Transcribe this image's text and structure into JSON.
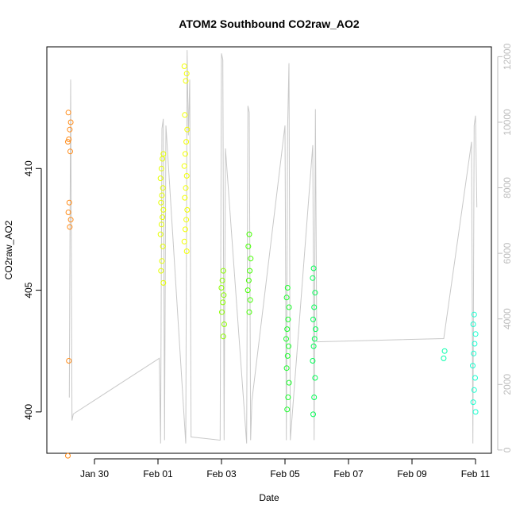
{
  "chart_data": {
    "type": "scatter",
    "title": "ATOM2 Southbound CO2raw_AO2",
    "xlabel": "Date",
    "ylabel": "CO2raw_AO2",
    "x_axis_type": "date",
    "xlim": [
      "2016-01-28T12:00",
      "2016-02-11T12:00"
    ],
    "x_ticks": [
      {
        "value": "2016-01-30T00:00",
        "label": "Jan 30"
      },
      {
        "value": "2016-02-01T00:00",
        "label": "Feb 01"
      },
      {
        "value": "2016-02-03T00:00",
        "label": "Feb 03"
      },
      {
        "value": "2016-02-05T00:00",
        "label": "Feb 05"
      },
      {
        "value": "2016-02-07T00:00",
        "label": "Feb 07"
      },
      {
        "value": "2016-02-09T00:00",
        "label": "Feb 09"
      },
      {
        "value": "2016-02-11T00:00",
        "label": "Feb 11"
      }
    ],
    "ylim": [
      398.3,
      415.0
    ],
    "y_ticks": [
      400,
      405,
      410
    ],
    "y_ticks_rotated": true,
    "y2_ticks": [
      0,
      2000,
      4000,
      6000,
      8000,
      10000,
      12000
    ],
    "y2_ticks_color": "#bdbdbd",
    "y2_lim": [
      -100,
      12300
    ],
    "line_color": "#c8c8c8",
    "grid": false,
    "legend": "none",
    "point_color_scale": "rainbow by date (orange to cyan)",
    "point_series": [
      {
        "x": "2016-01-29T05:00",
        "color": "#ff8c1a",
        "values": [
          398.2,
          402.1,
          407.6,
          407.9,
          408.2,
          408.6,
          410.7,
          411.1,
          411.2,
          411.6,
          411.9,
          412.3
        ]
      },
      {
        "x": "2016-02-01T03:00",
        "color": "#e6ff00",
        "values": [
          405.3,
          405.8,
          406.2,
          406.8,
          407.3,
          407.7,
          408.0,
          408.3,
          408.6,
          408.9,
          409.2,
          409.6,
          410.0,
          410.4,
          410.6
        ]
      },
      {
        "x": "2016-02-01T21:00",
        "color": "#f2ff00",
        "values": [
          406.6,
          407.0,
          407.5,
          407.9,
          408.3,
          408.8,
          409.2,
          409.7,
          410.1,
          410.6,
          411.1,
          411.6,
          412.2,
          413.6,
          413.9,
          414.2
        ]
      },
      {
        "x": "2016-02-03T01:00",
        "color": "#8cff00",
        "values": [
          403.1,
          403.6,
          404.1,
          404.5,
          404.8,
          405.1,
          405.4,
          405.8
        ]
      },
      {
        "x": "2016-02-03T21:00",
        "color": "#44ff00",
        "values": [
          404.1,
          404.6,
          405.0,
          405.4,
          405.8,
          406.3,
          406.8,
          407.3
        ]
      },
      {
        "x": "2016-02-05T02:00",
        "color": "#1aff2a",
        "values": [
          400.1,
          400.6,
          401.2,
          401.8,
          402.3,
          402.7,
          403.0,
          403.4,
          403.8,
          404.3,
          404.7,
          405.1
        ]
      },
      {
        "x": "2016-02-05T22:00",
        "color": "#00ff55",
        "values": [
          399.9,
          400.6,
          401.4,
          402.1,
          402.7,
          403.0,
          403.4,
          403.8,
          404.3,
          404.9,
          405.5,
          405.9
        ]
      },
      {
        "x": "2016-02-10T01:00",
        "color": "#00ffaa",
        "values": [
          402.2,
          402.5
        ]
      },
      {
        "x": "2016-02-10T23:00",
        "color": "#19ffd0",
        "values": [
          400.0,
          400.4,
          400.9,
          401.4,
          401.9,
          402.4,
          402.8,
          403.2,
          403.6,
          404.0
        ]
      }
    ],
    "line_series": {
      "name": "",
      "axis": "right",
      "x": [
        "2016-01-29T05:00",
        "2016-01-29T06:00",
        "2016-01-29T07:00",
        "2016-01-29T08:00",
        "2016-02-01T01:00",
        "2016-02-01T02:00",
        "2016-02-01T03:00",
        "2016-02-01T04:00",
        "2016-02-01T05:00",
        "2016-02-01T06:00",
        "2016-02-01T21:00",
        "2016-02-01T22:00",
        "2016-02-01T23:00",
        "2016-02-02T00:00",
        "2016-02-02T01:00",
        "2016-02-02T23:00",
        "2016-02-03T00:00",
        "2016-02-03T01:00",
        "2016-02-03T02:00",
        "2016-02-03T03:00",
        "2016-02-03T19:00",
        "2016-02-03T20:00",
        "2016-02-03T21:00",
        "2016-02-03T22:00",
        "2016-02-03T23:00",
        "2016-02-05T00:00",
        "2016-02-05T01:00",
        "2016-02-05T02:00",
        "2016-02-05T03:00",
        "2016-02-05T04:00",
        "2016-02-05T21:00",
        "2016-02-05T22:00",
        "2016-02-05T23:00",
        "2016-02-06T00:00",
        "2016-02-10T00:00",
        "2016-02-10T21:00",
        "2016-02-10T22:00",
        "2016-02-10T23:00",
        "2016-02-11T00:00",
        "2016-02-11T01:00"
      ],
      "y": [
        1600,
        11300,
        900,
        1100,
        2800,
        200,
        9800,
        10100,
        300,
        9900,
        200,
        12200,
        9600,
        11300,
        400,
        300,
        12100,
        11900,
        300,
        9200,
        200,
        10500,
        10300,
        300,
        1500,
        9900,
        300,
        9800,
        11800,
        300,
        9300,
        300,
        10400,
        3300,
        3400,
        9400,
        200,
        9900,
        10200,
        7400
      ]
    }
  }
}
